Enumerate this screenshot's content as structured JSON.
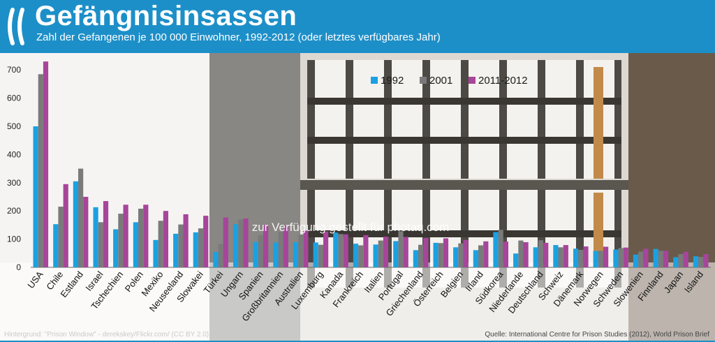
{
  "header": {
    "title": "Gefängnisinsassen",
    "subtitle": "Zahl der Gefangenen je 100 000 Einwohner, 1992-2012 (oder letztes verfügbares Jahr)"
  },
  "colors": {
    "brand": "#1d8fc8",
    "s1992": "#1ba1e2",
    "s2001": "#7a7a7a",
    "s2011": "#a6459a"
  },
  "watermark": "zur Verfügung gestellt für photaq.com",
  "footer": {
    "background": "Hintergrund: \"Prison Window\" - derekskey/Flickr.com/ (CC BY 2.0)",
    "source": "Quelle: International Centre for Prison Studies (2012), World Prison Brief"
  },
  "chart_data": {
    "type": "bar",
    "title": "Gefängnisinsassen",
    "subtitle": "Zahl der Gefangenen je 100 000 Einwohner, 1992-2012 (oder letztes verfügbares Jahr)",
    "ylim": [
      0,
      750
    ],
    "yticks": [
      0,
      100,
      200,
      300,
      400,
      500,
      600,
      700
    ],
    "grid": false,
    "legend": "top-center",
    "categories": [
      "USA",
      "Chile",
      "Estland",
      "Israel",
      "Tschechien",
      "Polen",
      "Mexiko",
      "Neuseeland",
      "Slowakei",
      "Türkei",
      "Ungarn",
      "Spanien",
      "Großbritannien",
      "Australien",
      "Luxemburg",
      "Kanada",
      "Frankreich",
      "Italien",
      "Portugal",
      "Griechenland",
      "Österreich",
      "Belgien",
      "Irland",
      "Südkorea",
      "Niederlande",
      "Deutschland",
      "Schweiz",
      "Dänemark",
      "Norwegen",
      "Schweden",
      "Slowenien",
      "Finnland",
      "Japan",
      "Island"
    ],
    "series": [
      {
        "name": "1992",
        "values": [
          500,
          153,
          305,
          213,
          135,
          160,
          97,
          119,
          124,
          54,
          153,
          90,
          88,
          89,
          88,
          123,
          84,
          81,
          93,
          61,
          87,
          71,
          61,
          125,
          49,
          71,
          79,
          66,
          58,
          63,
          45,
          65,
          36,
          39
        ]
      },
      {
        "name": "2001",
        "values": [
          685,
          215,
          350,
          160,
          190,
          208,
          165,
          152,
          138,
          83,
          170,
          114,
          125,
          116,
          80,
          118,
          78,
          95,
          128,
          80,
          86,
          85,
          78,
          133,
          95,
          96,
          71,
          62,
          59,
          68,
          56,
          59,
          47,
          37
        ]
      },
      {
        "name": "2011-2012",
        "values": [
          730,
          295,
          250,
          235,
          222,
          222,
          200,
          188,
          183,
          177,
          173,
          150,
          147,
          130,
          127,
          117,
          114,
          109,
          108,
          104,
          103,
          97,
          92,
          91,
          89,
          87,
          79,
          74,
          73,
          70,
          66,
          59,
          55,
          47
        ]
      }
    ]
  }
}
